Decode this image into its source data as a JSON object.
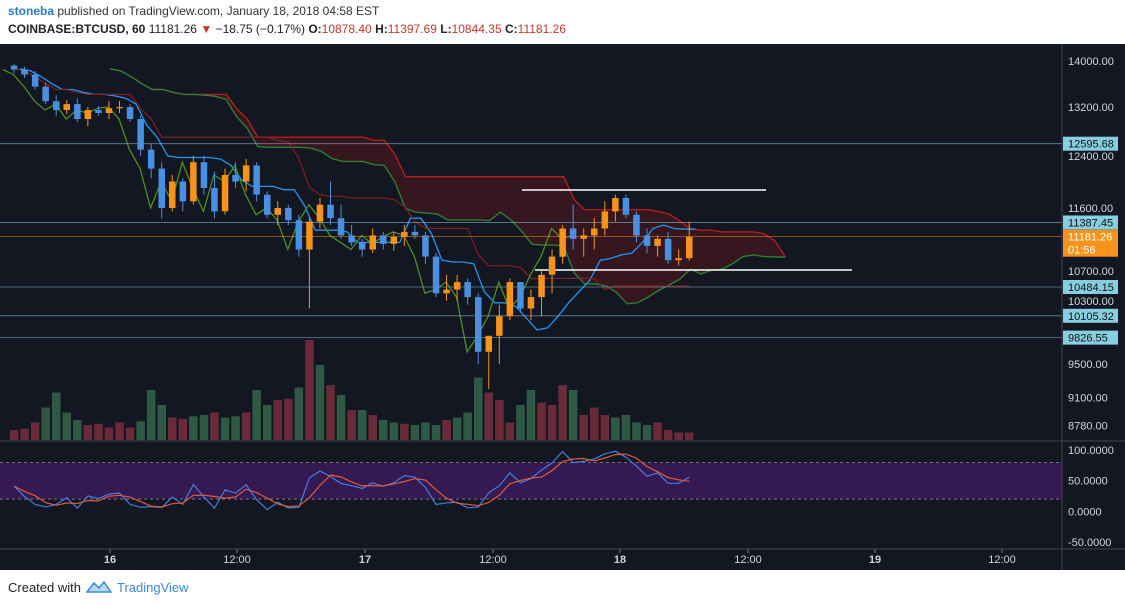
{
  "header": {
    "author": "stoneba",
    "published_text": "published on TradingView.com, January 18, 2018 04:58 EST",
    "symbol": "COINBASE:BTCUSD, 60",
    "last": "11181.26",
    "change": "−18.75 (−0.17%)",
    "o_label": "O:",
    "o": "10878.40",
    "h_label": "H:",
    "h": "11397.69",
    "l_label": "L:",
    "l": "10844.35",
    "c_label": "C:",
    "c": "11181.26"
  },
  "footer": {
    "created_with": "Created with",
    "brand": "TradingView"
  },
  "colors": {
    "background": "#131722",
    "bull": "#f7931a",
    "bear": "#4a90e2",
    "bull_volume": "#2e5a45",
    "bear_volume": "#6b2a3a",
    "cloud_red": "#b71c1c",
    "cloud_green": "#2e7d32",
    "conversion_line": "#2196f3",
    "lagging_span": "#4c8f22",
    "oscillator_band": "#3b1a5c"
  },
  "chart_data": [
    {
      "type": "candlestick",
      "symbol": "COINBASE:BTCUSD",
      "interval": "60",
      "y_scale": "log",
      "ylim": [
        8620,
        14200
      ],
      "x_ticks": [
        "16",
        "12:00",
        "17",
        "12:00",
        "18",
        "12:00",
        "19",
        "12:00"
      ],
      "y_ticks": [
        "14000.00",
        "13200.00",
        "12400.00",
        "11600.00",
        "10700.00",
        "10300.00",
        "9500.00",
        "9100.00",
        "8780.00"
      ],
      "price_labels": [
        {
          "value": "12595.68",
          "kind": "horizontal line"
        },
        {
          "value": "11387.45",
          "kind": "horizontal line"
        },
        {
          "value": "11181.26",
          "kind": "last price"
        },
        {
          "value": "01:56",
          "kind": "countdown"
        },
        {
          "value": "10484.15",
          "kind": "horizontal line"
        },
        {
          "value": "10105.32",
          "kind": "horizontal line"
        },
        {
          "value": "9826.55",
          "kind": "horizontal line"
        }
      ],
      "candles": [
        [
          13920,
          13950,
          13780,
          13850
        ],
        [
          13850,
          13900,
          13700,
          13760
        ],
        [
          13760,
          13820,
          13500,
          13550
        ],
        [
          13550,
          13620,
          13250,
          13300
        ],
        [
          13300,
          13400,
          13050,
          13150
        ],
        [
          13150,
          13320,
          13080,
          13250
        ],
        [
          13250,
          13350,
          12950,
          13000
        ],
        [
          13000,
          13200,
          12880,
          13150
        ],
        [
          13150,
          13220,
          13050,
          13100
        ],
        [
          13100,
          13300,
          13000,
          13180
        ],
        [
          13180,
          13300,
          13100,
          13200
        ],
        [
          13200,
          13250,
          12950,
          13000
        ],
        [
          13000,
          13050,
          12400,
          12500
        ],
        [
          12500,
          12600,
          12050,
          12200
        ],
        [
          12200,
          12300,
          11450,
          11600
        ],
        [
          11600,
          12100,
          11550,
          12000
        ],
        [
          12000,
          12050,
          11550,
          11700
        ],
        [
          11700,
          12400,
          11650,
          12300
        ],
        [
          12300,
          12400,
          11800,
          11900
        ],
        [
          11900,
          12150,
          11450,
          11550
        ],
        [
          11550,
          12200,
          11500,
          12100
        ],
        [
          12100,
          12300,
          11900,
          12000
        ],
        [
          12000,
          12350,
          11850,
          12250
        ],
        [
          12250,
          12300,
          11700,
          11800
        ],
        [
          11800,
          11850,
          11450,
          11500
        ],
        [
          11500,
          11700,
          11350,
          11600
        ],
        [
          11600,
          11650,
          11350,
          11420
        ],
        [
          11420,
          11500,
          10900,
          11000
        ],
        [
          11000,
          11450,
          10200,
          11400
        ],
        [
          11400,
          11750,
          11300,
          11650
        ],
        [
          11650,
          12000,
          11350,
          11450
        ],
        [
          11450,
          11650,
          11150,
          11200
        ],
        [
          11200,
          11350,
          11050,
          11100
        ],
        [
          11100,
          11150,
          10900,
          11000
        ],
        [
          11000,
          11300,
          10950,
          11200
        ],
        [
          11200,
          11250,
          11000,
          11080
        ],
        [
          11080,
          11250,
          10980,
          11180
        ],
        [
          11180,
          11350,
          11050,
          11250
        ],
        [
          11250,
          11350,
          11150,
          11200
        ],
        [
          11200,
          11250,
          10800,
          10900
        ],
        [
          10900,
          10950,
          10350,
          10400
        ],
        [
          10400,
          10650,
          10300,
          10450
        ],
        [
          10450,
          10650,
          10300,
          10550
        ],
        [
          10550,
          10600,
          10250,
          10350
        ],
        [
          10350,
          10400,
          9500,
          9650
        ],
        [
          9650,
          9850,
          9200,
          9850
        ],
        [
          9850,
          10250,
          9500,
          10100
        ],
        [
          10100,
          10600,
          10050,
          10550
        ],
        [
          10550,
          10550,
          10150,
          10200
        ],
        [
          10200,
          10450,
          10050,
          10350
        ],
        [
          10350,
          10700,
          10100,
          10650
        ],
        [
          10650,
          11000,
          10400,
          10900
        ],
        [
          10900,
          11350,
          10800,
          11300
        ],
        [
          11300,
          11650,
          11000,
          11150
        ],
        [
          11150,
          11300,
          10900,
          11200
        ],
        [
          11200,
          11450,
          11000,
          11300
        ],
        [
          11300,
          11700,
          11200,
          11550
        ],
        [
          11550,
          11800,
          11400,
          11750
        ],
        [
          11750,
          11800,
          11450,
          11500
        ],
        [
          11500,
          11550,
          11100,
          11200
        ],
        [
          11200,
          11300,
          10950,
          11050
        ],
        [
          11050,
          11200,
          10900,
          11150
        ],
        [
          11150,
          11250,
          10800,
          10850
        ],
        [
          10850,
          11000,
          10780,
          10878
        ],
        [
          10878.4,
          11397.69,
          10844.35,
          11181.26
        ]
      ],
      "volume": [
        [
          8,
          0
        ],
        [
          9,
          0
        ],
        [
          14,
          0
        ],
        [
          26,
          1
        ],
        [
          38,
          1
        ],
        [
          22,
          1
        ],
        [
          16,
          1
        ],
        [
          12,
          0
        ],
        [
          13,
          0
        ],
        [
          10,
          0
        ],
        [
          14,
          0
        ],
        [
          10,
          0
        ],
        [
          15,
          1
        ],
        [
          40,
          1
        ],
        [
          28,
          1
        ],
        [
          18,
          0
        ],
        [
          17,
          0
        ],
        [
          19,
          1
        ],
        [
          20,
          1
        ],
        [
          22,
          0
        ],
        [
          18,
          1
        ],
        [
          19,
          1
        ],
        [
          22,
          0
        ],
        [
          40,
          1
        ],
        [
          28,
          1
        ],
        [
          32,
          0
        ],
        [
          33,
          0
        ],
        [
          42,
          1
        ],
        [
          80,
          0
        ],
        [
          60,
          1
        ],
        [
          44,
          0
        ],
        [
          36,
          1
        ],
        [
          24,
          0
        ],
        [
          24,
          1
        ],
        [
          20,
          0
        ],
        [
          16,
          1
        ],
        [
          14,
          1
        ],
        [
          13,
          0
        ],
        [
          12,
          1
        ],
        [
          14,
          1
        ],
        [
          12,
          1
        ],
        [
          16,
          0
        ],
        [
          18,
          1
        ],
        [
          22,
          1
        ],
        [
          50,
          1
        ],
        [
          38,
          0
        ],
        [
          32,
          0
        ],
        [
          14,
          0
        ],
        [
          28,
          1
        ],
        [
          40,
          1
        ],
        [
          30,
          0
        ],
        [
          28,
          0
        ],
        [
          44,
          0
        ],
        [
          40,
          1
        ],
        [
          20,
          0
        ],
        [
          26,
          0
        ],
        [
          20,
          0
        ],
        [
          18,
          1
        ],
        [
          20,
          1
        ],
        [
          14,
          1
        ],
        [
          12,
          1
        ],
        [
          14,
          0
        ],
        [
          8,
          0
        ],
        [
          6,
          0
        ],
        [
          6,
          0
        ]
      ]
    },
    {
      "type": "line",
      "name": "oscillator",
      "ylim": [
        -60,
        110
      ],
      "y_ticks": [
        "100.0000",
        "50.0000",
        "0.0000",
        "-50.0000"
      ],
      "band": [
        20,
        80
      ]
    }
  ]
}
